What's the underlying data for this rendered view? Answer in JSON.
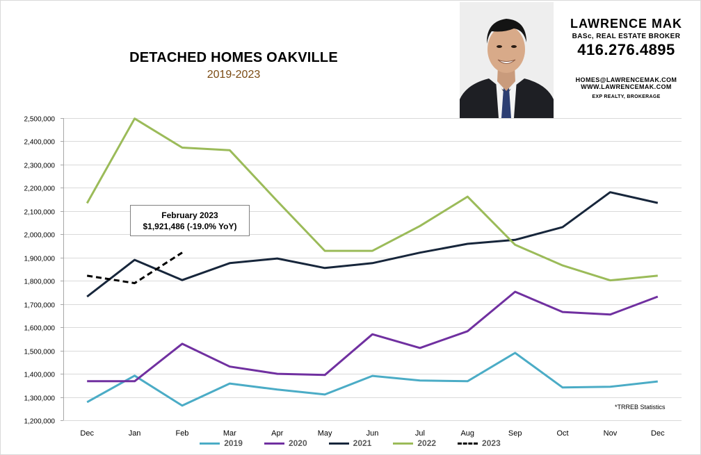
{
  "header": {
    "title": "DETACHED HOMES OAKVILLE",
    "subtitle": "2019-2023"
  },
  "agent": {
    "name": "LAWRENCE MAK",
    "role": "BASc, REAL ESTATE BROKER",
    "phone": "416.276.4895",
    "email": "HOMES@LAWRENCEMAK.COM",
    "website": "WWW.LAWRENCEMAK.COM",
    "brokerage": "EXP REALTY, BROKERAGE"
  },
  "callout": {
    "line1": "February 2023",
    "line2": "$1,921,486  (-19.0%  YoY)"
  },
  "source_note": "*TRREB Statistics",
  "chart_data": {
    "type": "line",
    "title": "DETACHED HOMES OAKVILLE",
    "subtitle": "2019-2023",
    "categories": [
      "Dec",
      "Jan",
      "Feb",
      "Mar",
      "Apr",
      "May",
      "Jun",
      "Jul",
      "Aug",
      "Sep",
      "Oct",
      "Nov",
      "Dec"
    ],
    "ylim": [
      1200000,
      2500000
    ],
    "yticks": [
      1200000,
      1300000,
      1400000,
      1500000,
      1600000,
      1700000,
      1800000,
      1900000,
      2000000,
      2100000,
      2200000,
      2300000,
      2400000,
      2500000
    ],
    "ytick_labels": [
      "1,200,000",
      "1,300,000",
      "1,400,000",
      "1,500,000",
      "1,600,000",
      "1,700,000",
      "1,800,000",
      "1,900,000",
      "2,000,000",
      "2,100,000",
      "2,200,000",
      "2,300,000",
      "2,400,000",
      "2,500,000"
    ],
    "grid": true,
    "legend": "bottom",
    "series": [
      {
        "name": "2019",
        "color": "#4bacc6",
        "dashed": false,
        "values": [
          1278000,
          1392000,
          1263000,
          1358000,
          1332000,
          1311000,
          1391000,
          1371000,
          1368000,
          1490000,
          1341000,
          1344000,
          1367000
        ]
      },
      {
        "name": "2020",
        "color": "#7030a0",
        "dashed": false,
        "values": [
          1368000,
          1368000,
          1529000,
          1431000,
          1400000,
          1395000,
          1570000,
          1511000,
          1583000,
          1753000,
          1666000,
          1655000,
          1732000
        ]
      },
      {
        "name": "2021",
        "color": "#17263b",
        "dashed": false,
        "values": [
          1732000,
          1890000,
          1803000,
          1876000,
          1896000,
          1855000,
          1876000,
          1921000,
          1959000,
          1976000,
          2031000,
          2181000,
          2135000
        ]
      },
      {
        "name": "2022",
        "color": "#9bbb59",
        "dashed": false,
        "values": [
          2134000,
          2498000,
          2373000,
          2362000,
          2143000,
          1929000,
          1929000,
          2036000,
          2162000,
          1955000,
          1866000,
          1802000,
          1822000
        ]
      },
      {
        "name": "2023",
        "color": "#000000",
        "dashed": true,
        "values": [
          1822000,
          1790000,
          1921486,
          null,
          null,
          null,
          null,
          null,
          null,
          null,
          null,
          null,
          null
        ]
      }
    ]
  }
}
